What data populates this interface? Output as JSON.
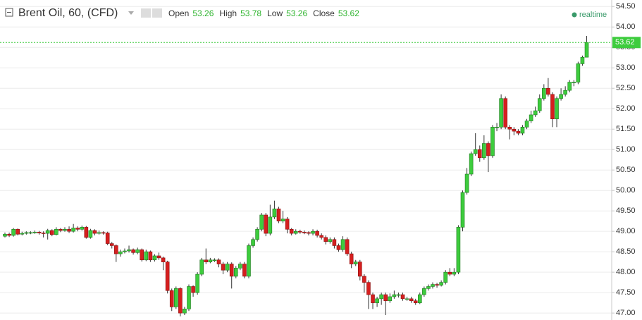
{
  "chart_data": {
    "type": "candlestick",
    "title": "Brent Oil, 60, (CFD)",
    "ohlc_labels": [
      "Open",
      "High",
      "Low",
      "Close"
    ],
    "status": "realtime",
    "ylim": [
      46.83,
      54.66
    ],
    "yticks": [
      {
        "value": 47,
        "label": "47.00"
      },
      {
        "value": 47.5,
        "label": "47.50"
      },
      {
        "value": 48,
        "label": "48.00"
      },
      {
        "value": 48.5,
        "label": "48.50"
      },
      {
        "value": 49,
        "label": "49.00"
      },
      {
        "value": 49.5,
        "label": "49.50"
      },
      {
        "value": 50,
        "label": "50.00"
      },
      {
        "value": 50.5,
        "label": "50.50"
      },
      {
        "value": 51,
        "label": "51.00"
      },
      {
        "value": 51.5,
        "label": "51.50"
      },
      {
        "value": 52,
        "label": "52.00"
      },
      {
        "value": 52.5,
        "label": "52.50"
      },
      {
        "value": 53,
        "label": "53.00"
      },
      {
        "value": 53.5,
        "label": "53.50"
      },
      {
        "value": 54,
        "label": "54.00"
      },
      {
        "value": 54.5,
        "label": "54.50"
      }
    ],
    "grid": true,
    "up_color": "#3dcc3d",
    "down_color": "#d61f1f",
    "last_price_line": true,
    "series": [
      {
        "name": "Brent Oil",
        "open": [
          48.88,
          48.93,
          48.9,
          49.05,
          48.93,
          48.95,
          48.97,
          48.97,
          48.98,
          48.96,
          48.95,
          49.02,
          48.92,
          49.05,
          49.02,
          49.05,
          49.0,
          49.08,
          49.05,
          49.1,
          48.85,
          49.02,
          48.95,
          48.97,
          48.96,
          48.7,
          48.65,
          48.45,
          48.5,
          48.52,
          48.55,
          48.48,
          48.55,
          48.3,
          48.5,
          48.3,
          48.4,
          48.35,
          48.25,
          47.55,
          47.15,
          47.6,
          47.0,
          47.1,
          47.65,
          47.5,
          47.95,
          48.3,
          48.25,
          48.3,
          48.3,
          48.2,
          48.05,
          48.2,
          47.9,
          48.1,
          48.2,
          47.9,
          48.65,
          48.8,
          49.05,
          49.4,
          48.95,
          49.35,
          49.55,
          49.25,
          49.3,
          49.05,
          48.95,
          49.0,
          48.98,
          48.97,
          48.95,
          49.0,
          48.9,
          48.85,
          48.75,
          48.8,
          48.65,
          48.55,
          48.8,
          48.45,
          48.2,
          48.25,
          47.9,
          47.75,
          47.45,
          47.25,
          47.35,
          47.45,
          47.3,
          47.4,
          47.45,
          47.45,
          47.35,
          47.35,
          47.3,
          47.25,
          47.45,
          47.6,
          47.65,
          47.7,
          47.68,
          47.75,
          48.0,
          47.95,
          48.0,
          49.1,
          49.95,
          50.4,
          50.9,
          51.0,
          50.8,
          51.15,
          50.85,
          51.55,
          51.55,
          52.25,
          51.55,
          51.5,
          51.45,
          51.4,
          51.55,
          51.7,
          51.85,
          51.95,
          52.25,
          52.5,
          52.35,
          51.75,
          52.25,
          52.35,
          52.45,
          52.65,
          52.65,
          53.1,
          53.26
        ],
        "high": [
          48.97,
          48.97,
          49.08,
          49.07,
          48.99,
          49.0,
          49.0,
          49.02,
          49.01,
          49.0,
          49.06,
          49.05,
          49.1,
          49.08,
          49.1,
          49.12,
          49.18,
          49.12,
          49.14,
          49.13,
          49.06,
          49.05,
          49.02,
          49.0,
          48.99,
          48.74,
          48.68,
          48.55,
          48.58,
          48.65,
          48.58,
          48.6,
          48.58,
          48.55,
          48.53,
          48.44,
          48.48,
          48.38,
          48.28,
          47.6,
          47.65,
          47.63,
          47.15,
          47.7,
          47.68,
          48.0,
          48.35,
          48.58,
          48.35,
          48.34,
          48.34,
          48.25,
          48.25,
          48.24,
          48.15,
          48.25,
          48.25,
          48.7,
          48.85,
          49.1,
          49.45,
          49.45,
          49.65,
          49.75,
          49.6,
          49.5,
          49.35,
          49.08,
          49.05,
          49.04,
          49.02,
          49.0,
          49.05,
          49.04,
          48.95,
          48.9,
          48.85,
          48.85,
          48.7,
          48.88,
          48.85,
          48.5,
          48.3,
          48.3,
          47.95,
          47.8,
          47.5,
          47.4,
          47.5,
          47.5,
          47.48,
          47.55,
          47.5,
          47.5,
          47.4,
          47.4,
          47.35,
          47.5,
          47.65,
          47.7,
          47.75,
          47.74,
          47.8,
          48.05,
          48.1,
          48.1,
          49.15,
          50.0,
          50.55,
          50.95,
          51.4,
          51.1,
          51.35,
          51.2,
          51.6,
          51.65,
          52.35,
          52.3,
          51.6,
          51.55,
          51.5,
          51.6,
          51.75,
          51.95,
          52.05,
          52.35,
          52.6,
          52.75,
          52.4,
          52.3,
          52.5,
          52.55,
          52.7,
          52.7,
          53.15,
          53.3,
          53.78
        ],
        "low": [
          48.85,
          48.86,
          48.87,
          48.9,
          48.9,
          48.92,
          48.93,
          48.94,
          48.92,
          48.85,
          48.8,
          48.88,
          48.9,
          48.98,
          48.99,
          48.96,
          48.97,
          49.0,
          49.02,
          48.82,
          48.82,
          48.9,
          48.92,
          48.92,
          48.66,
          48.58,
          48.25,
          48.38,
          48.46,
          48.48,
          48.43,
          48.44,
          48.26,
          48.27,
          48.25,
          48.26,
          48.3,
          48.05,
          47.48,
          47.05,
          47.1,
          46.92,
          46.95,
          47.05,
          47.4,
          47.45,
          47.9,
          48.2,
          48.22,
          48.25,
          48.12,
          47.95,
          48.0,
          47.6,
          47.85,
          48.05,
          47.85,
          47.85,
          48.6,
          48.75,
          49.0,
          48.88,
          48.9,
          49.3,
          49.2,
          49.2,
          48.95,
          48.9,
          48.92,
          48.94,
          48.93,
          48.9,
          48.9,
          48.85,
          48.8,
          48.68,
          48.7,
          48.58,
          48.5,
          48.5,
          48.4,
          48.1,
          48.15,
          47.8,
          47.5,
          47.1,
          47.1,
          47.15,
          47.2,
          46.95,
          47.25,
          47.35,
          47.38,
          47.3,
          47.3,
          47.25,
          47.2,
          47.22,
          47.4,
          47.55,
          47.6,
          47.62,
          47.65,
          47.7,
          47.9,
          47.9,
          47.95,
          49.0,
          49.9,
          50.35,
          50.85,
          50.7,
          50.75,
          50.45,
          50.8,
          51.45,
          51.5,
          51.5,
          51.25,
          51.35,
          51.35,
          51.35,
          51.5,
          51.65,
          51.8,
          51.9,
          52.2,
          52.3,
          51.55,
          51.55,
          52.2,
          52.3,
          52.4,
          52.55,
          52.6,
          53.05,
          53.26
        ],
        "close": [
          48.93,
          48.9,
          49.05,
          48.93,
          48.95,
          48.97,
          48.97,
          48.98,
          48.96,
          48.95,
          49.02,
          48.92,
          49.05,
          49.02,
          49.05,
          49.0,
          49.08,
          49.05,
          49.1,
          48.85,
          49.02,
          48.95,
          48.97,
          48.96,
          48.7,
          48.65,
          48.45,
          48.5,
          48.52,
          48.55,
          48.48,
          48.55,
          48.3,
          48.5,
          48.3,
          48.4,
          48.35,
          48.25,
          47.55,
          47.15,
          47.6,
          47.0,
          47.1,
          47.65,
          47.5,
          47.95,
          48.3,
          48.25,
          48.3,
          48.3,
          48.2,
          48.05,
          48.2,
          47.9,
          48.1,
          48.2,
          47.9,
          48.65,
          48.8,
          49.05,
          49.4,
          48.95,
          49.35,
          49.55,
          49.25,
          49.3,
          49.05,
          48.95,
          49.0,
          48.98,
          48.97,
          48.95,
          49.0,
          48.9,
          48.85,
          48.75,
          48.8,
          48.65,
          48.55,
          48.8,
          48.45,
          48.2,
          48.25,
          47.9,
          47.75,
          47.45,
          47.25,
          47.35,
          47.45,
          47.3,
          47.4,
          47.45,
          47.45,
          47.35,
          47.35,
          47.3,
          47.25,
          47.45,
          47.6,
          47.65,
          47.7,
          47.68,
          47.75,
          48.0,
          47.95,
          48.0,
          49.1,
          49.95,
          50.4,
          50.9,
          51.0,
          50.8,
          51.15,
          50.85,
          51.55,
          51.55,
          52.25,
          51.55,
          51.5,
          51.45,
          51.4,
          51.55,
          51.7,
          51.85,
          51.95,
          52.25,
          52.5,
          52.35,
          51.75,
          52.25,
          52.35,
          52.45,
          52.65,
          52.65,
          53.1,
          53.26,
          53.62
        ]
      }
    ]
  }
}
